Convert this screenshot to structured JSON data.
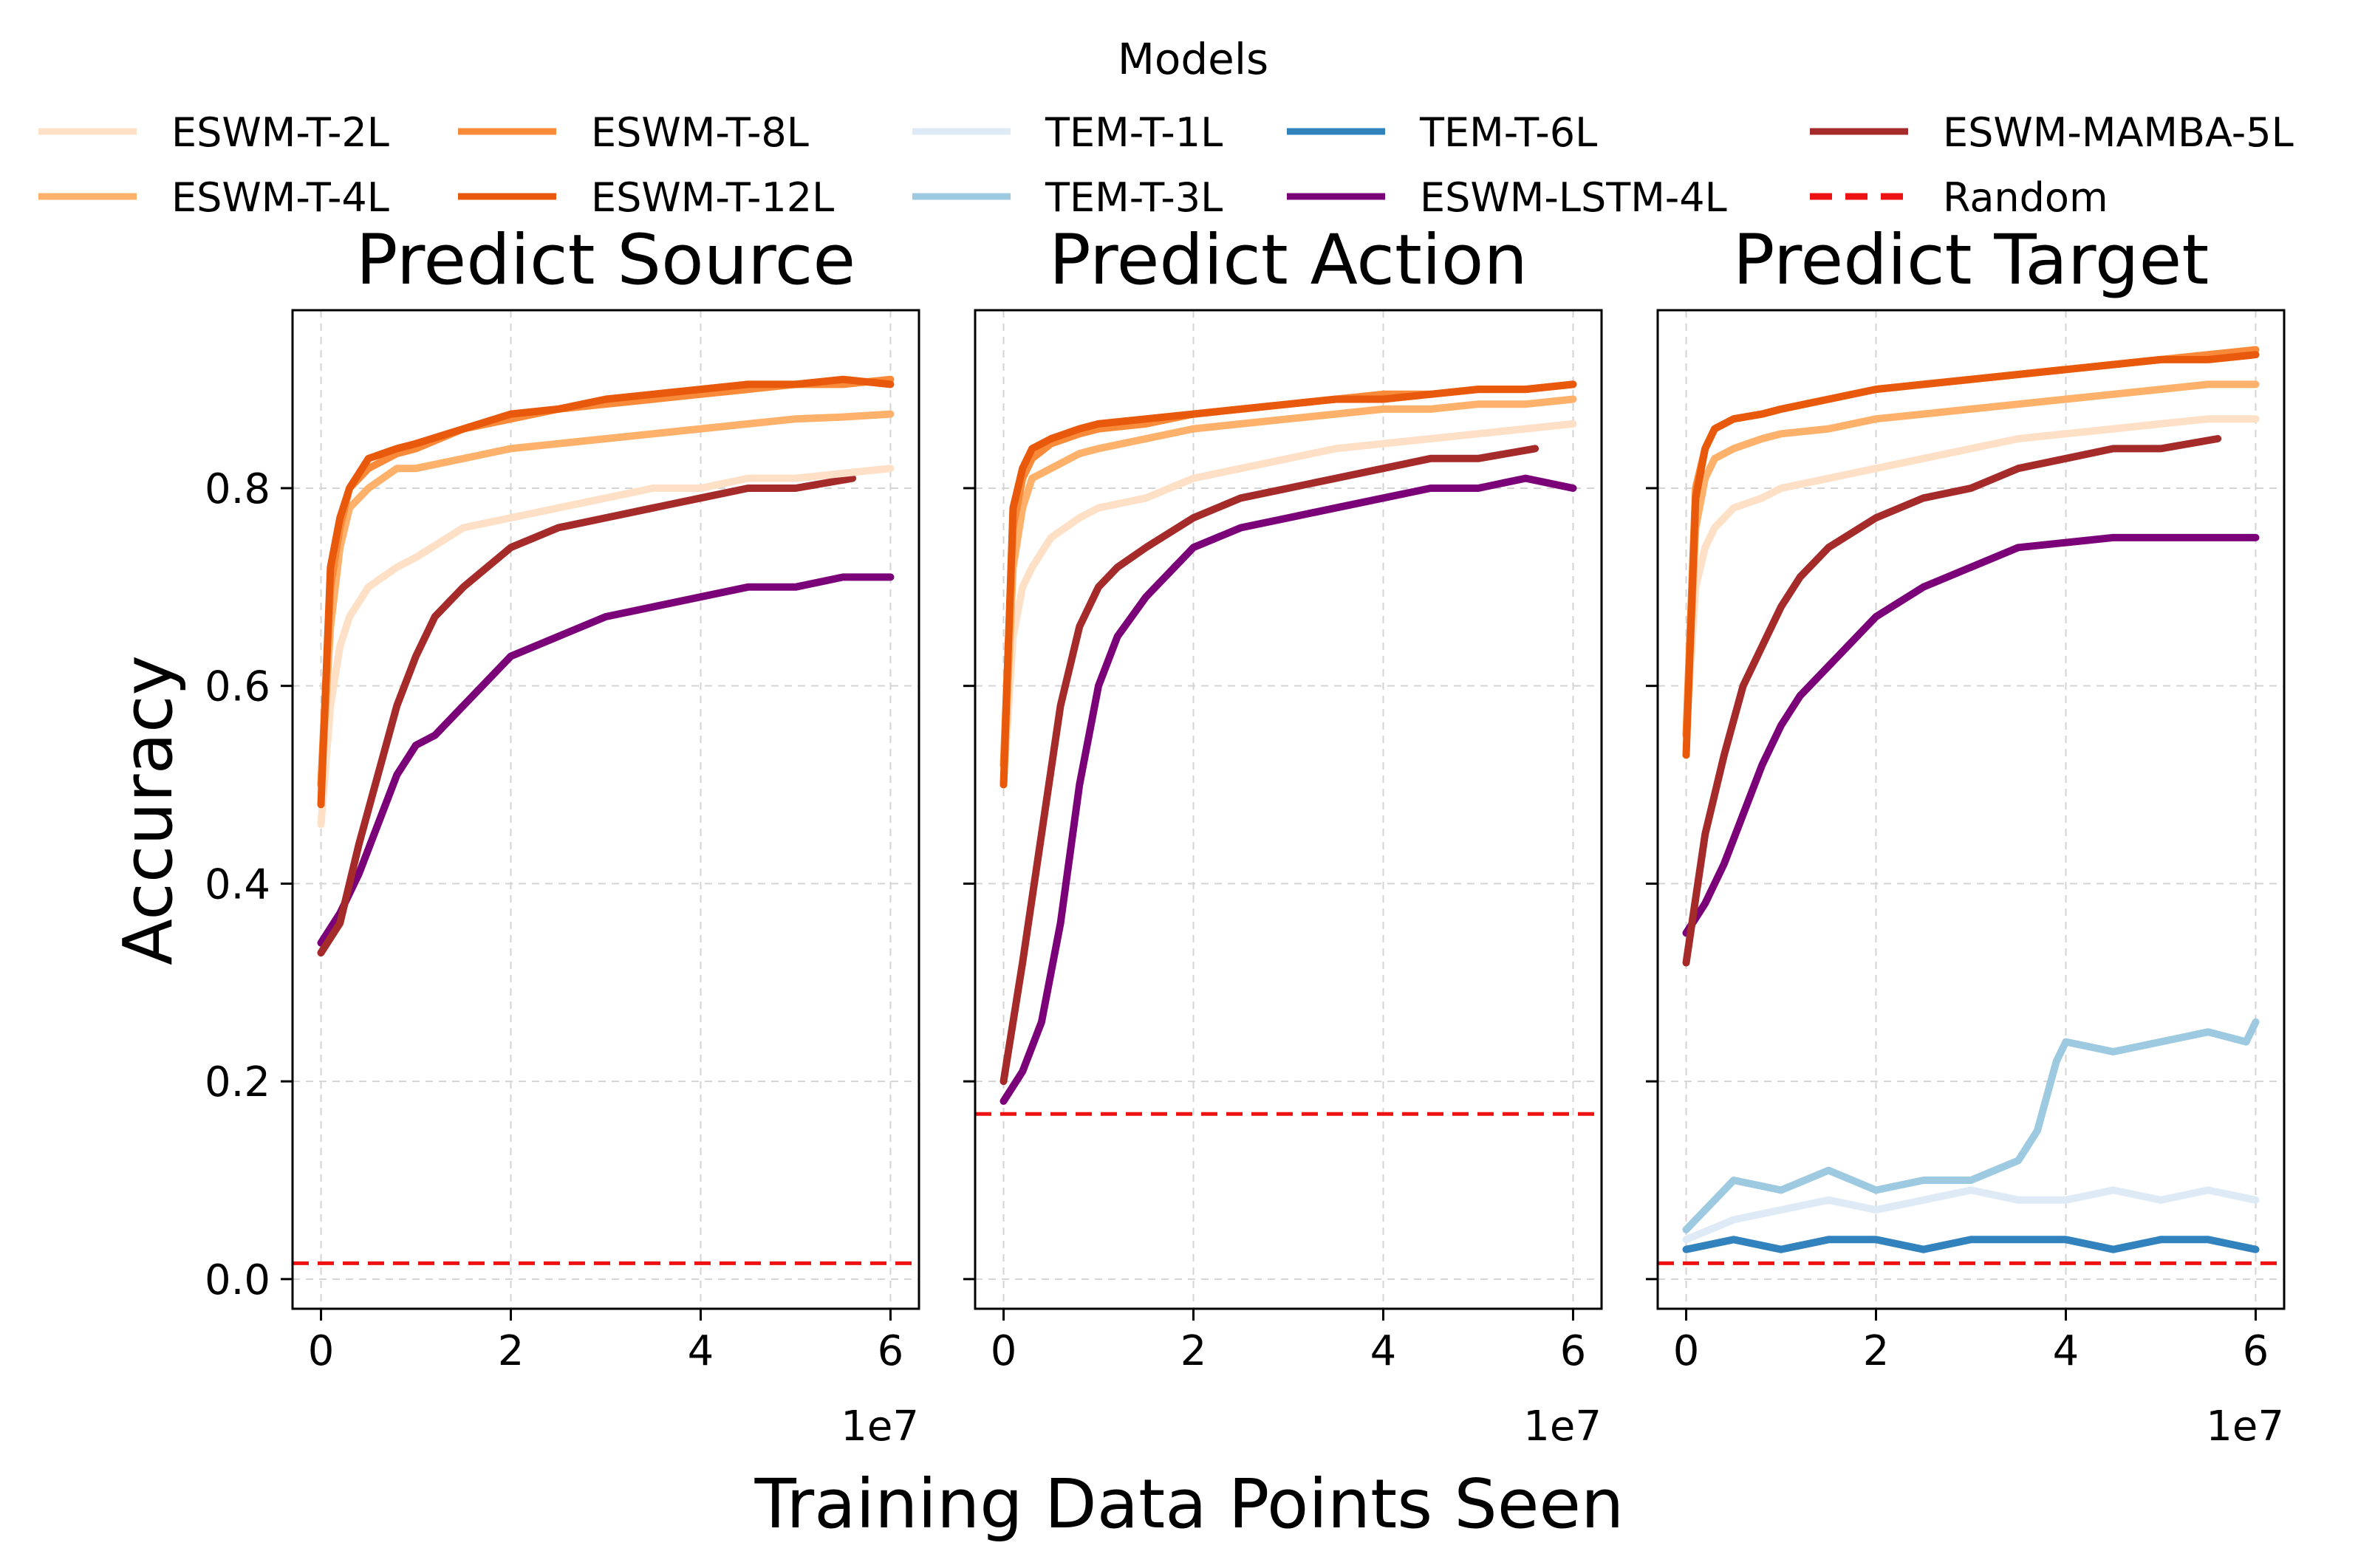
{
  "figure": {
    "legend_title": "Models",
    "ylabel": "Accuracy",
    "xlabel": "Training Data Points Seen",
    "x_multiplier": "1e7"
  },
  "legend": [
    {
      "label": "ESWM-T-2L",
      "color": "#fde0c5",
      "style": "solid"
    },
    {
      "label": "ESWM-T-4L",
      "color": "#fdb16b",
      "style": "solid"
    },
    {
      "label": "ESWM-T-8L",
      "color": "#f98a3a",
      "style": "solid"
    },
    {
      "label": "ESWM-T-12L",
      "color": "#e8590c",
      "style": "solid"
    },
    {
      "label": "TEM-T-1L",
      "color": "#deebf7",
      "style": "solid"
    },
    {
      "label": "TEM-T-3L",
      "color": "#9ecae1",
      "style": "solid"
    },
    {
      "label": "TEM-T-6L",
      "color": "#3182bd",
      "style": "solid"
    },
    {
      "label": "ESWM-LSTM-4L",
      "color": "#7a0177",
      "style": "solid"
    },
    {
      "label": "ESWM-MAMBA-5L",
      "color": "#a52a2a",
      "style": "solid"
    },
    {
      "label": "Random",
      "color": "#ee1111",
      "style": "dashed"
    }
  ],
  "chart_data": [
    {
      "type": "line",
      "title": "Predict Source",
      "xlabel": "Training Data Points Seen (1e7)",
      "ylabel": "Accuracy",
      "xlim": [
        -0.3,
        6.3
      ],
      "ylim": [
        -0.03,
        0.98
      ],
      "xticks": [
        0,
        2,
        4,
        6
      ],
      "yticks": [
        0.0,
        0.2,
        0.4,
        0.6,
        0.8
      ],
      "grid": true,
      "random_baseline": 0.016,
      "series": [
        {
          "name": "ESWM-T-2L",
          "x": [
            0,
            0.1,
            0.2,
            0.3,
            0.5,
            0.8,
            1.0,
            1.5,
            2,
            2.5,
            3,
            3.5,
            4,
            4.5,
            5,
            5.5,
            6
          ],
          "y": [
            0.46,
            0.58,
            0.64,
            0.67,
            0.7,
            0.72,
            0.73,
            0.76,
            0.77,
            0.78,
            0.79,
            0.8,
            0.8,
            0.81,
            0.81,
            0.815,
            0.82
          ]
        },
        {
          "name": "ESWM-T-4L",
          "x": [
            0,
            0.1,
            0.2,
            0.3,
            0.5,
            0.8,
            1.0,
            1.5,
            2,
            2.5,
            3,
            3.5,
            4,
            4.5,
            5,
            5.5,
            6
          ],
          "y": [
            0.5,
            0.66,
            0.74,
            0.78,
            0.8,
            0.82,
            0.82,
            0.83,
            0.84,
            0.845,
            0.85,
            0.855,
            0.86,
            0.865,
            0.87,
            0.872,
            0.875
          ]
        },
        {
          "name": "ESWM-T-8L",
          "x": [
            0,
            0.1,
            0.2,
            0.3,
            0.5,
            0.8,
            1.0,
            1.5,
            2,
            2.5,
            3,
            3.5,
            4,
            4.5,
            5,
            5.5,
            6
          ],
          "y": [
            0.5,
            0.7,
            0.76,
            0.8,
            0.82,
            0.835,
            0.84,
            0.86,
            0.87,
            0.88,
            0.885,
            0.89,
            0.895,
            0.9,
            0.905,
            0.905,
            0.91
          ]
        },
        {
          "name": "ESWM-T-12L",
          "x": [
            0,
            0.1,
            0.2,
            0.3,
            0.5,
            0.8,
            1.0,
            1.5,
            2,
            2.5,
            3,
            3.5,
            4,
            4.5,
            5,
            5.5,
            6
          ],
          "y": [
            0.48,
            0.72,
            0.77,
            0.8,
            0.83,
            0.84,
            0.845,
            0.86,
            0.875,
            0.88,
            0.89,
            0.895,
            0.9,
            0.905,
            0.905,
            0.91,
            0.905
          ]
        },
        {
          "name": "ESWM-MAMBA-5L",
          "x": [
            0,
            0.2,
            0.4,
            0.6,
            0.8,
            1.0,
            1.2,
            1.5,
            2,
            2.5,
            3,
            3.5,
            4,
            4.5,
            5,
            5.6
          ],
          "y": [
            0.33,
            0.36,
            0.44,
            0.51,
            0.58,
            0.63,
            0.67,
            0.7,
            0.74,
            0.76,
            0.77,
            0.78,
            0.79,
            0.8,
            0.8,
            0.81
          ]
        },
        {
          "name": "ESWM-LSTM-4L",
          "x": [
            0,
            0.2,
            0.4,
            0.6,
            0.8,
            1.0,
            1.2,
            1.5,
            2,
            2.5,
            3,
            3.5,
            4,
            4.5,
            5,
            5.5,
            6
          ],
          "y": [
            0.34,
            0.37,
            0.41,
            0.46,
            0.51,
            0.54,
            0.55,
            0.58,
            0.63,
            0.65,
            0.67,
            0.68,
            0.69,
            0.7,
            0.7,
            0.71,
            0.71
          ]
        }
      ]
    },
    {
      "type": "line",
      "title": "Predict Action",
      "xlabel": "Training Data Points Seen (1e7)",
      "ylabel": "Accuracy",
      "xlim": [
        -0.3,
        6.3
      ],
      "ylim": [
        -0.03,
        0.98
      ],
      "xticks": [
        0,
        2,
        4,
        6
      ],
      "yticks": [
        0.0,
        0.2,
        0.4,
        0.6,
        0.8
      ],
      "grid": true,
      "random_baseline": 0.167,
      "series": [
        {
          "name": "ESWM-T-2L",
          "x": [
            0,
            0.1,
            0.2,
            0.3,
            0.5,
            0.8,
            1.0,
            1.5,
            2,
            2.5,
            3,
            3.5,
            4,
            4.5,
            5,
            5.5,
            6
          ],
          "y": [
            0.5,
            0.65,
            0.7,
            0.72,
            0.75,
            0.77,
            0.78,
            0.79,
            0.81,
            0.82,
            0.83,
            0.84,
            0.845,
            0.85,
            0.855,
            0.86,
            0.865
          ]
        },
        {
          "name": "ESWM-T-4L",
          "x": [
            0,
            0.1,
            0.2,
            0.3,
            0.5,
            0.8,
            1.0,
            1.5,
            2,
            2.5,
            3,
            3.5,
            4,
            4.5,
            5,
            5.5,
            6
          ],
          "y": [
            0.5,
            0.72,
            0.78,
            0.81,
            0.82,
            0.835,
            0.84,
            0.85,
            0.86,
            0.865,
            0.87,
            0.875,
            0.88,
            0.88,
            0.885,
            0.885,
            0.89
          ]
        },
        {
          "name": "ESWM-T-8L",
          "x": [
            0,
            0.1,
            0.2,
            0.3,
            0.5,
            0.8,
            1.0,
            1.5,
            2,
            2.5,
            3,
            3.5,
            4,
            4.5,
            5,
            5.5,
            6
          ],
          "y": [
            0.52,
            0.76,
            0.81,
            0.83,
            0.845,
            0.855,
            0.86,
            0.865,
            0.875,
            0.88,
            0.885,
            0.89,
            0.895,
            0.895,
            0.9,
            0.9,
            0.905
          ]
        },
        {
          "name": "ESWM-T-12L",
          "x": [
            0,
            0.1,
            0.2,
            0.3,
            0.5,
            0.8,
            1.0,
            1.5,
            2,
            2.5,
            3,
            3.5,
            4,
            4.5,
            5,
            5.5,
            6
          ],
          "y": [
            0.5,
            0.78,
            0.82,
            0.84,
            0.85,
            0.86,
            0.865,
            0.87,
            0.875,
            0.88,
            0.885,
            0.89,
            0.89,
            0.895,
            0.9,
            0.9,
            0.905
          ]
        },
        {
          "name": "ESWM-MAMBA-5L",
          "x": [
            0,
            0.2,
            0.4,
            0.6,
            0.8,
            1.0,
            1.2,
            1.5,
            2,
            2.5,
            3,
            3.5,
            4,
            4.5,
            5,
            5.6
          ],
          "y": [
            0.2,
            0.32,
            0.45,
            0.58,
            0.66,
            0.7,
            0.72,
            0.74,
            0.77,
            0.79,
            0.8,
            0.81,
            0.82,
            0.83,
            0.83,
            0.84
          ]
        },
        {
          "name": "ESWM-LSTM-4L",
          "x": [
            0,
            0.2,
            0.4,
            0.6,
            0.8,
            1.0,
            1.2,
            1.5,
            2,
            2.5,
            3,
            3.5,
            4,
            4.5,
            5,
            5.5,
            6
          ],
          "y": [
            0.18,
            0.21,
            0.26,
            0.36,
            0.5,
            0.6,
            0.65,
            0.69,
            0.74,
            0.76,
            0.77,
            0.78,
            0.79,
            0.8,
            0.8,
            0.81,
            0.8
          ]
        }
      ]
    },
    {
      "type": "line",
      "title": "Predict Target",
      "xlabel": "Training Data Points Seen (1e7)",
      "ylabel": "Accuracy",
      "xlim": [
        -0.3,
        6.3
      ],
      "ylim": [
        -0.03,
        0.98
      ],
      "xticks": [
        0,
        2,
        4,
        6
      ],
      "yticks": [
        0.0,
        0.2,
        0.4,
        0.6,
        0.8
      ],
      "grid": true,
      "random_baseline": 0.016,
      "series": [
        {
          "name": "ESWM-T-2L",
          "x": [
            0,
            0.1,
            0.2,
            0.3,
            0.5,
            0.8,
            1.0,
            1.5,
            2,
            2.5,
            3,
            3.5,
            4,
            4.5,
            5,
            5.5,
            6
          ],
          "y": [
            0.55,
            0.7,
            0.74,
            0.76,
            0.78,
            0.79,
            0.8,
            0.81,
            0.82,
            0.83,
            0.84,
            0.85,
            0.855,
            0.86,
            0.865,
            0.87,
            0.87
          ]
        },
        {
          "name": "ESWM-T-4L",
          "x": [
            0,
            0.1,
            0.2,
            0.3,
            0.5,
            0.8,
            1.0,
            1.5,
            2,
            2.5,
            3,
            3.5,
            4,
            4.5,
            5,
            5.5,
            6
          ],
          "y": [
            0.55,
            0.76,
            0.81,
            0.83,
            0.84,
            0.85,
            0.855,
            0.86,
            0.87,
            0.875,
            0.88,
            0.885,
            0.89,
            0.895,
            0.9,
            0.905,
            0.905
          ]
        },
        {
          "name": "ESWM-T-8L",
          "x": [
            0,
            0.1,
            0.2,
            0.3,
            0.5,
            0.8,
            1.0,
            1.5,
            2,
            2.5,
            3,
            3.5,
            4,
            4.5,
            5,
            5.5,
            6
          ],
          "y": [
            0.55,
            0.8,
            0.84,
            0.86,
            0.87,
            0.875,
            0.88,
            0.89,
            0.9,
            0.905,
            0.91,
            0.915,
            0.92,
            0.925,
            0.93,
            0.935,
            0.94
          ]
        },
        {
          "name": "ESWM-T-12L",
          "x": [
            0,
            0.1,
            0.2,
            0.3,
            0.5,
            0.8,
            1.0,
            1.5,
            2,
            2.5,
            3,
            3.5,
            4,
            4.5,
            5,
            5.5,
            6
          ],
          "y": [
            0.53,
            0.79,
            0.84,
            0.86,
            0.87,
            0.875,
            0.88,
            0.89,
            0.9,
            0.905,
            0.91,
            0.915,
            0.92,
            0.925,
            0.93,
            0.93,
            0.935
          ]
        },
        {
          "name": "ESWM-MAMBA-5L",
          "x": [
            0,
            0.2,
            0.4,
            0.6,
            0.8,
            1.0,
            1.2,
            1.5,
            2,
            2.5,
            3,
            3.5,
            4,
            4.5,
            5,
            5.6
          ],
          "y": [
            0.32,
            0.45,
            0.53,
            0.6,
            0.64,
            0.68,
            0.71,
            0.74,
            0.77,
            0.79,
            0.8,
            0.82,
            0.83,
            0.84,
            0.84,
            0.85
          ]
        },
        {
          "name": "ESWM-LSTM-4L",
          "x": [
            0,
            0.2,
            0.4,
            0.6,
            0.8,
            1.0,
            1.2,
            1.5,
            2,
            2.5,
            3,
            3.5,
            4,
            4.5,
            5,
            5.5,
            6
          ],
          "y": [
            0.35,
            0.38,
            0.42,
            0.47,
            0.52,
            0.56,
            0.59,
            0.62,
            0.67,
            0.7,
            0.72,
            0.74,
            0.745,
            0.75,
            0.75,
            0.75,
            0.75
          ]
        },
        {
          "name": "TEM-T-1L",
          "x": [
            0,
            0.5,
            1.0,
            1.5,
            2,
            2.5,
            3,
            3.5,
            4,
            4.5,
            5,
            5.5,
            6
          ],
          "y": [
            0.04,
            0.06,
            0.07,
            0.08,
            0.07,
            0.08,
            0.09,
            0.08,
            0.08,
            0.09,
            0.08,
            0.09,
            0.08
          ]
        },
        {
          "name": "TEM-T-3L",
          "x": [
            0,
            0.3,
            0.5,
            1.0,
            1.5,
            2,
            2.5,
            3,
            3.5,
            3.7,
            3.9,
            4,
            4.5,
            5,
            5.5,
            5.9,
            6
          ],
          "y": [
            0.05,
            0.08,
            0.1,
            0.09,
            0.11,
            0.09,
            0.1,
            0.1,
            0.12,
            0.15,
            0.22,
            0.24,
            0.23,
            0.24,
            0.25,
            0.24,
            0.26
          ]
        },
        {
          "name": "TEM-T-6L",
          "x": [
            0,
            0.5,
            1.0,
            1.5,
            2,
            2.5,
            3,
            3.5,
            4,
            4.5,
            5,
            5.5,
            6
          ],
          "y": [
            0.03,
            0.04,
            0.03,
            0.04,
            0.04,
            0.03,
            0.04,
            0.04,
            0.04,
            0.03,
            0.04,
            0.04,
            0.03
          ]
        }
      ]
    }
  ]
}
